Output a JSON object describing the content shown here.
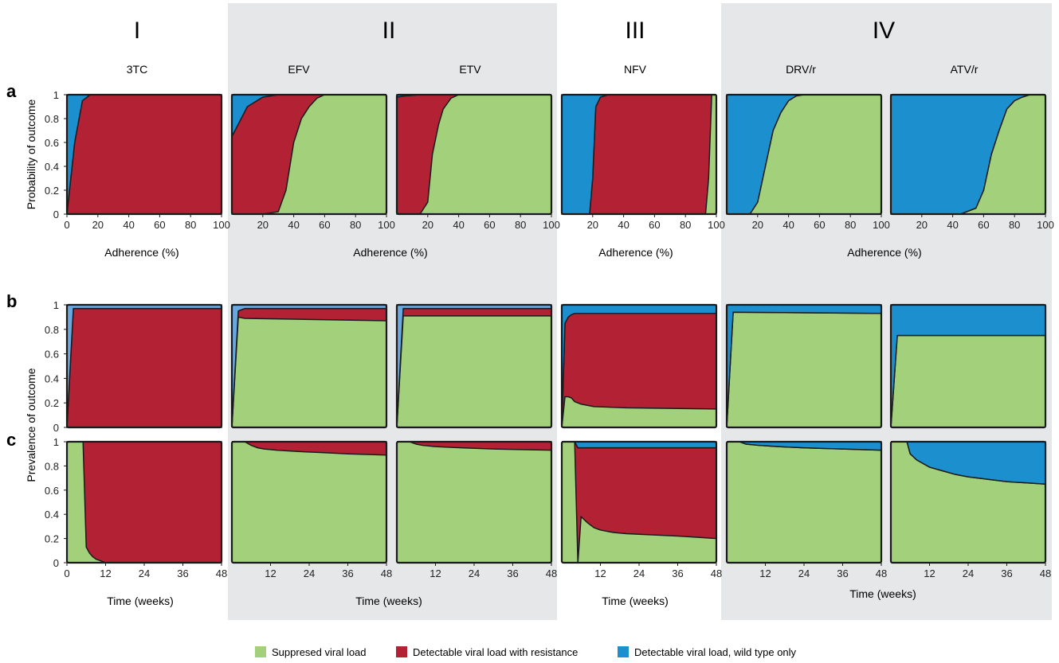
{
  "figure": {
    "groups": [
      {
        "label": "I",
        "shaded": false
      },
      {
        "label": "II",
        "shaded": true
      },
      {
        "label": "III",
        "shaded": false
      },
      {
        "label": "IV",
        "shaded": true
      }
    ],
    "row_labels": [
      "a",
      "b",
      "c"
    ],
    "drugs": [
      "3TC",
      "EFV",
      "ETV",
      "NFV",
      "DRV/r",
      "ATV/r"
    ],
    "colors": {
      "suppressed": "#a2d07b",
      "resistance": "#b22234",
      "wildtype": "#1c90cf",
      "wildtype_light": "#6aa8df",
      "shade": "#e6e7e9",
      "outline": "#1a1a1a"
    },
    "legend": [
      {
        "label": "Suppresed viral load",
        "color": "#a2d07b"
      },
      {
        "label": "Detectable viral load with resistance",
        "color": "#b22234"
      },
      {
        "label": "Detectable viral load, wild type only",
        "color": "#1c90cf"
      }
    ]
  },
  "chart_data": [
    {
      "row": "a",
      "type": "area",
      "ylabel": "Probability of outcome",
      "xlabel": "Adherence (%)",
      "yticks": [
        "1",
        "0.8",
        "0.6",
        "0.4",
        "0.2",
        "0"
      ],
      "panels": [
        {
          "drug": "3TC",
          "xticks": [
            "0",
            "20",
            "40",
            "60",
            "80",
            "100"
          ],
          "xlim": [
            0,
            100
          ],
          "x": [
            0,
            5,
            10,
            15,
            100
          ],
          "wildtype": [
            1,
            0.4,
            0.05,
            0,
            0
          ],
          "resistance": [
            0,
            0.6,
            0.95,
            1,
            1
          ]
        },
        {
          "drug": "EFV",
          "xticks": [
            "20",
            "40",
            "60",
            "80",
            "100"
          ],
          "xlim": [
            0,
            100
          ],
          "x": [
            0,
            10,
            20,
            30,
            35,
            40,
            45,
            50,
            55,
            60,
            100
          ],
          "wildtype": [
            0.35,
            0.1,
            0.02,
            0,
            0,
            0,
            0,
            0,
            0,
            0,
            0
          ],
          "resistance": [
            0.65,
            0.9,
            0.98,
            0.98,
            0.8,
            0.4,
            0.2,
            0.1,
            0.03,
            0,
            0
          ]
        },
        {
          "drug": "ETV",
          "xticks": [
            "20",
            "40",
            "60",
            "80",
            "100"
          ],
          "xlim": [
            0,
            100
          ],
          "x": [
            0,
            5,
            15,
            20,
            23,
            27,
            30,
            35,
            40,
            100
          ],
          "wildtype": [
            0.02,
            0.01,
            0,
            0,
            0,
            0,
            0,
            0,
            0,
            0
          ],
          "resistance": [
            0.98,
            0.99,
            1,
            0.9,
            0.5,
            0.25,
            0.12,
            0.03,
            0,
            0
          ]
        },
        {
          "drug": "NFV",
          "xticks": [
            "20",
            "40",
            "60",
            "80",
            "100"
          ],
          "xlim": [
            0,
            100
          ],
          "x": [
            0,
            18,
            20,
            22,
            25,
            30,
            90,
            93,
            95,
            97,
            100
          ],
          "wildtype": [
            1,
            1,
            0.7,
            0.1,
            0.02,
            0,
            0,
            0,
            0,
            0,
            0
          ],
          "resistance": [
            0,
            0,
            0.3,
            0.9,
            0.98,
            1,
            1,
            1,
            0.7,
            0,
            0
          ]
        },
        {
          "drug": "DRV/r",
          "xticks": [
            "20",
            "40",
            "60",
            "80",
            "100"
          ],
          "xlim": [
            0,
            100
          ],
          "x": [
            0,
            15,
            20,
            25,
            30,
            35,
            40,
            45,
            50,
            100
          ],
          "wildtype": [
            1,
            1,
            0.9,
            0.6,
            0.3,
            0.15,
            0.05,
            0.01,
            0,
            0
          ],
          "resistance": [
            0,
            0,
            0,
            0,
            0,
            0,
            0,
            0,
            0,
            0
          ]
        },
        {
          "drug": "ATV/r",
          "xticks": [
            "20",
            "40",
            "60",
            "80",
            "100"
          ],
          "xlim": [
            0,
            100
          ],
          "x": [
            0,
            45,
            55,
            60,
            65,
            70,
            75,
            80,
            85,
            90,
            100
          ],
          "wildtype": [
            1,
            1,
            0.95,
            0.8,
            0.5,
            0.3,
            0.12,
            0.05,
            0.02,
            0,
            0
          ],
          "resistance": [
            0,
            0,
            0,
            0,
            0,
            0,
            0,
            0,
            0,
            0,
            0
          ]
        }
      ]
    },
    {
      "row": "b",
      "type": "area",
      "ylabel": "Prevalence of outcome",
      "yticks": [
        "1",
        "0.8",
        "0.6",
        "0.4",
        "0.2",
        "0"
      ],
      "panels": [
        {
          "drug": "3TC",
          "x": [
            0,
            2,
            48
          ],
          "wildtype": [
            1,
            0.03,
            0.03
          ],
          "resistance": [
            0,
            0.97,
            0.97
          ]
        },
        {
          "drug": "EFV",
          "x": [
            0,
            2,
            4,
            48
          ],
          "wildtype": [
            1,
            0.05,
            0.03,
            0.03
          ],
          "resistance": [
            0,
            0.05,
            0.08,
            0.1
          ]
        },
        {
          "drug": "ETV",
          "x": [
            0,
            2,
            48
          ],
          "wildtype": [
            1,
            0.03,
            0.03
          ],
          "resistance": [
            0,
            0.06,
            0.06
          ]
        },
        {
          "drug": "NFV",
          "x": [
            0,
            1,
            2,
            3,
            4,
            6,
            10,
            20,
            48
          ],
          "wildtype": [
            1,
            0.15,
            0.1,
            0.08,
            0.07,
            0.07,
            0.07,
            0.07,
            0.07
          ],
          "resistance": [
            0,
            0.6,
            0.65,
            0.68,
            0.72,
            0.74,
            0.76,
            0.77,
            0.78
          ]
        },
        {
          "drug": "DRV/r",
          "x": [
            0,
            2,
            48
          ],
          "wildtype": [
            1,
            0.06,
            0.07
          ],
          "resistance": [
            0,
            0,
            0
          ]
        },
        {
          "drug": "ATV/r",
          "x": [
            0,
            2,
            48
          ],
          "wildtype": [
            1,
            0.25,
            0.25
          ],
          "resistance": [
            0,
            0,
            0
          ]
        }
      ]
    },
    {
      "row": "c",
      "type": "area",
      "xlabel": "Time (weeks)",
      "yticks": [
        "1",
        "0.8",
        "0.6",
        "0.4",
        "0.2",
        "0"
      ],
      "xticks_first": [
        "0",
        "12",
        "24",
        "36",
        "48"
      ],
      "xticks": [
        "12",
        "24",
        "36",
        "48"
      ],
      "panels": [
        {
          "drug": "3TC",
          "x": [
            0,
            5,
            6,
            7,
            8,
            9,
            10,
            11,
            12,
            48
          ],
          "wildtype": [
            0,
            0,
            0,
            0,
            0,
            0,
            0,
            0,
            0,
            0
          ],
          "resistance": [
            0,
            0,
            0.87,
            0.92,
            0.95,
            0.97,
            0.98,
            0.99,
            1,
            1
          ]
        },
        {
          "drug": "EFV",
          "x": [
            0,
            4,
            6,
            8,
            10,
            14,
            20,
            28,
            36,
            48
          ],
          "wildtype": [
            0,
            0,
            0,
            0,
            0,
            0,
            0,
            0,
            0,
            0
          ],
          "resistance": [
            0,
            0,
            0.03,
            0.05,
            0.06,
            0.07,
            0.08,
            0.09,
            0.1,
            0.11
          ]
        },
        {
          "drug": "ETV",
          "x": [
            0,
            4,
            6,
            8,
            12,
            20,
            30,
            48
          ],
          "wildtype": [
            0,
            0,
            0,
            0,
            0,
            0,
            0,
            0
          ],
          "resistance": [
            0,
            0,
            0.02,
            0.03,
            0.04,
            0.05,
            0.06,
            0.07
          ]
        },
        {
          "drug": "NFV",
          "x": [
            0,
            4,
            5,
            6,
            8,
            10,
            12,
            16,
            20,
            28,
            36,
            48
          ],
          "wildtype": [
            0,
            0,
            0.05,
            0.05,
            0.05,
            0.05,
            0.05,
            0.05,
            0.05,
            0.05,
            0.05,
            0.05
          ],
          "resistance": [
            0,
            0,
            0.95,
            0.57,
            0.62,
            0.66,
            0.68,
            0.7,
            0.71,
            0.72,
            0.73,
            0.75
          ]
        },
        {
          "drug": "DRV/r",
          "x": [
            0,
            4,
            6,
            10,
            16,
            24,
            36,
            48
          ],
          "wildtype": [
            0,
            0,
            0.02,
            0.03,
            0.04,
            0.05,
            0.06,
            0.07
          ],
          "resistance": [
            0,
            0,
            0,
            0,
            0,
            0,
            0,
            0
          ]
        },
        {
          "drug": "ATV/r",
          "x": [
            0,
            5,
            6,
            8,
            10,
            12,
            16,
            20,
            24,
            30,
            36,
            42,
            48
          ],
          "wildtype": [
            0,
            0,
            0.1,
            0.15,
            0.18,
            0.21,
            0.24,
            0.27,
            0.29,
            0.31,
            0.33,
            0.34,
            0.35
          ],
          "resistance": [
            0,
            0,
            0,
            0,
            0,
            0,
            0,
            0,
            0,
            0,
            0,
            0,
            0
          ]
        }
      ]
    }
  ]
}
